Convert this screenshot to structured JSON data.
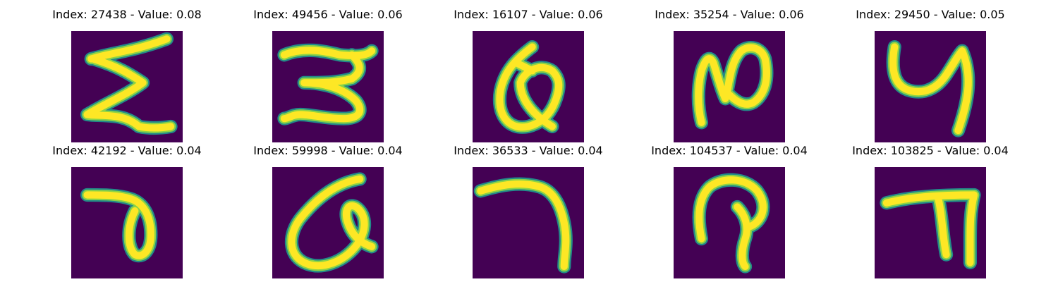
{
  "colors": {
    "background": "#440154",
    "edge": "#21918c",
    "mid": "#90d743",
    "core": "#fde725"
  },
  "panels": [
    {
      "title": "Index: 27438 - Value: 0.08",
      "glyph": "sigma-like-icon"
    },
    {
      "title": "Index: 49456 - Value: 0.06",
      "glyph": "three-like-icon"
    },
    {
      "title": "Index: 16107 - Value: 0.06",
      "glyph": "alpha-loop-icon"
    },
    {
      "title": "Index: 35254 - Value: 0.06",
      "glyph": "n-shape-icon"
    },
    {
      "title": "Index: 29450 - Value: 0.05",
      "glyph": "y-shape-icon"
    },
    {
      "title": "Index: 42192 - Value: 0.04",
      "glyph": "hook-loop-icon"
    },
    {
      "title": "Index: 59998 - Value: 0.04",
      "glyph": "alpha-loop-icon"
    },
    {
      "title": "Index: 36533 - Value: 0.04",
      "glyph": "seven-shape-icon"
    },
    {
      "title": "Index: 104537 - Value: 0.04",
      "glyph": "hook-shape-icon"
    },
    {
      "title": "Index: 103825 - Value: 0.04",
      "glyph": "angle-shape-icon"
    }
  ]
}
